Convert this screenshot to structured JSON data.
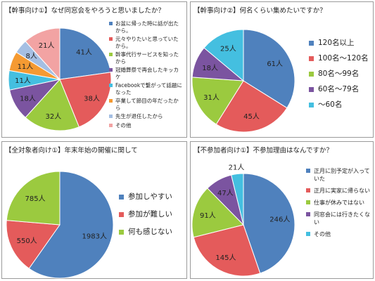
{
  "chart_data": [
    {
      "type": "pie",
      "title": "【幹事向け①】なぜ同窓会をやろうと思いましたか？",
      "categories": [
        "お盆に帰った時に話が出たから。",
        "元々やりたいと思っていたから。",
        "幹事代行サービスを知ったから",
        "冠婚葬祭で再会したキッカケ",
        "Facebookで繋がって話題になった",
        "卒業して節目の年だったから",
        "先生が退任したから",
        "その他"
      ],
      "values": [
        41,
        38,
        32,
        18,
        11,
        11,
        8,
        21
      ],
      "labels": [
        "41人",
        "38人",
        "32人",
        "18人",
        "11人",
        "11人",
        "8人",
        "21人"
      ],
      "colors": [
        "#4f81bd",
        "#e45b5b",
        "#9bca3f",
        "#7b54a0",
        "#44bfe0",
        "#f59a32",
        "#a5bfe3",
        "#f2a3a3"
      ],
      "legend": "right"
    },
    {
      "type": "pie",
      "title": "【幹事向け②】何名くらい集めたいですか？",
      "categories": [
        "120名以上",
        "100名～120名",
        "80名～99名",
        "60名～79名",
        "～60名"
      ],
      "values": [
        61,
        45,
        31,
        18,
        25
      ],
      "labels": [
        "61人",
        "45人",
        "31人",
        "18人",
        "25人"
      ],
      "colors": [
        "#4f81bd",
        "#e45b5b",
        "#9bca3f",
        "#7b54a0",
        "#44bfe0"
      ],
      "legend": "right"
    },
    {
      "type": "pie",
      "title": "【全対象者向け①】年末年始の開催に関して",
      "categories": [
        "参加しやすい",
        "参加が難しい",
        "何も感じない"
      ],
      "values": [
        1983,
        550,
        785
      ],
      "labels": [
        "1983人",
        "550人",
        "785人"
      ],
      "colors": [
        "#4f81bd",
        "#e45b5b",
        "#9bca3f"
      ],
      "legend": "right"
    },
    {
      "type": "pie",
      "title": "【不参加者向け①】不参加理由はなんですか？",
      "categories": [
        "正月に別予定が入っていた",
        "正月に実家に帰らない",
        "仕事が休みではない",
        "同窓会には行きたくない",
        "その他"
      ],
      "values": [
        246,
        145,
        91,
        47,
        21
      ],
      "labels": [
        "246人",
        "145人",
        "91人",
        "47人",
        "21人"
      ],
      "colors": [
        "#4f81bd",
        "#e45b5b",
        "#9bca3f",
        "#7b54a0",
        "#44bfe0"
      ],
      "legend": "right"
    }
  ]
}
